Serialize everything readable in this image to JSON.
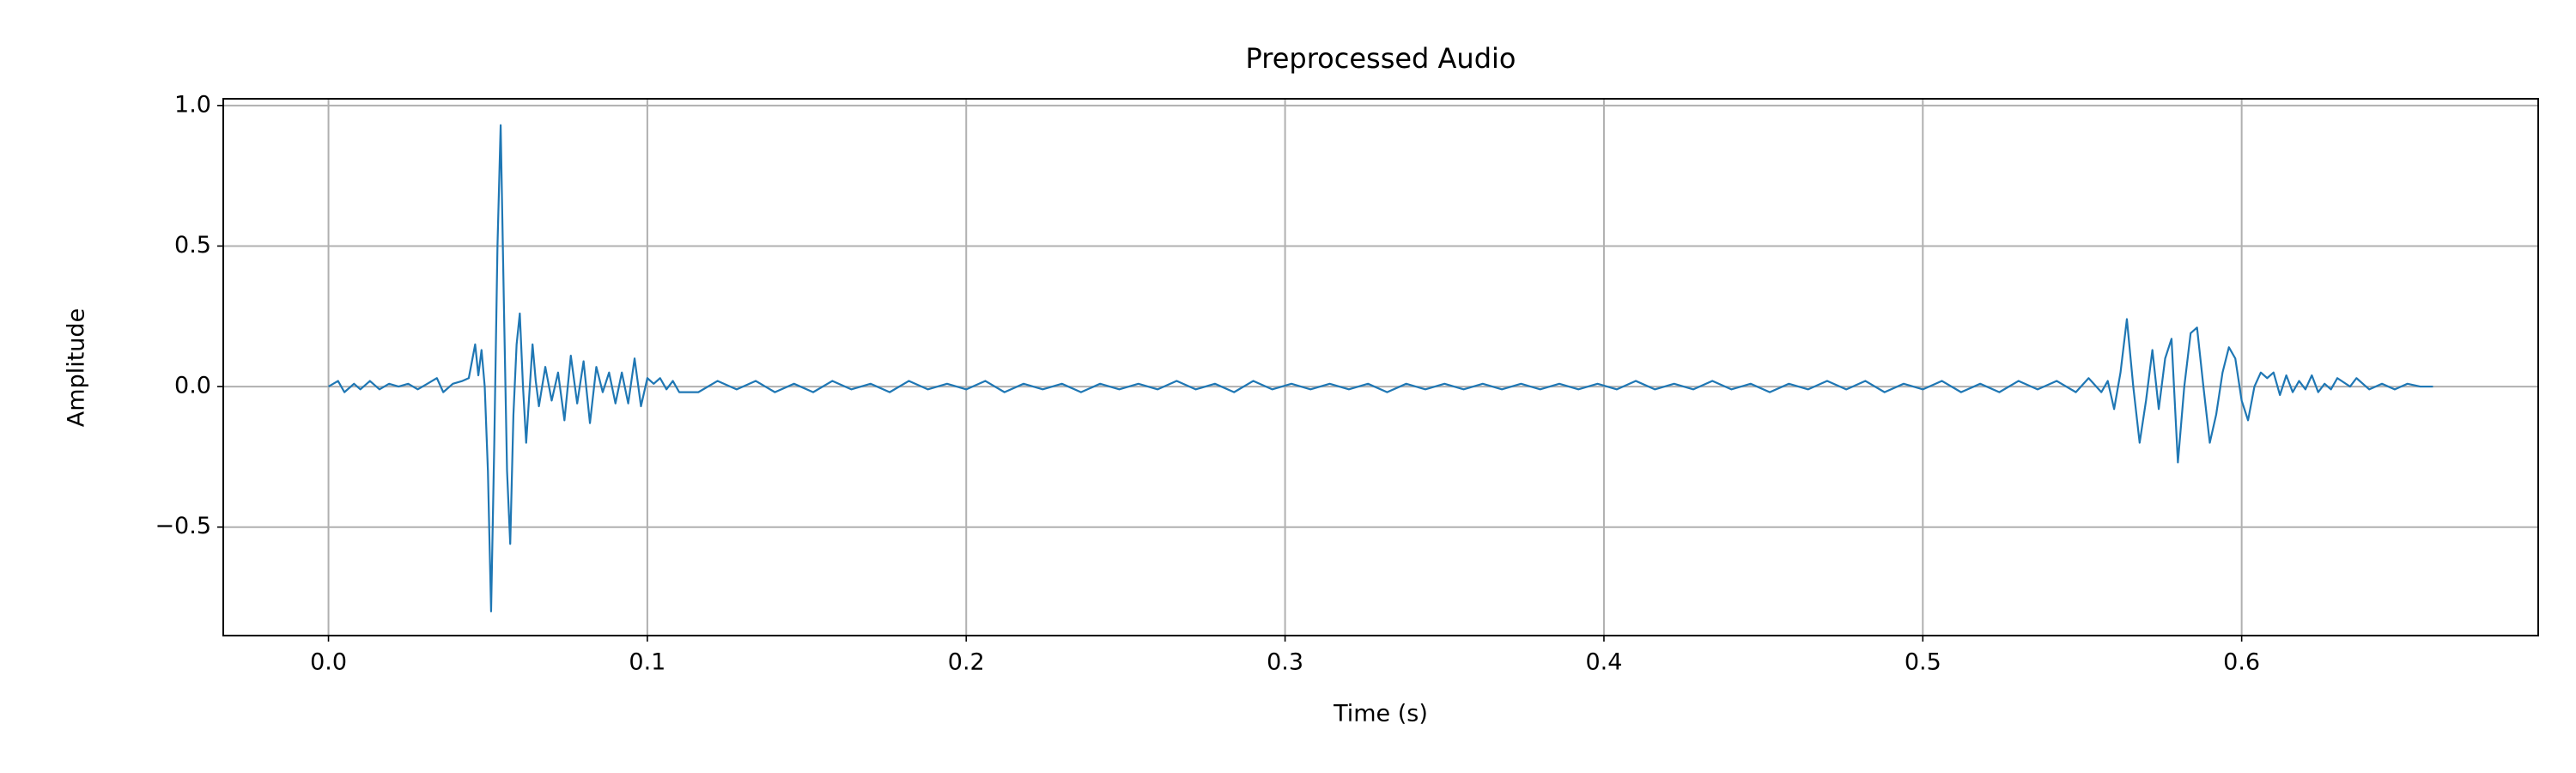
{
  "chart_data": {
    "type": "line",
    "title": "Preprocessed Audio",
    "x_label": "Time (s)",
    "y_label": "Amplitude",
    "color": "#1f77b4",
    "grid": true,
    "xlim": [
      -0.033,
      0.693
    ],
    "ylim": [
      -0.886,
      1.024
    ],
    "xticks": [
      {
        "value": 0,
        "label": "0.0"
      },
      0.1,
      0.2,
      0.3,
      0.4,
      0.5,
      0.6
    ],
    "yticks": [
      {
        "value": -0.5,
        "label": "−0.5"
      },
      {
        "value": 0,
        "label": "0.0"
      },
      0.5,
      {
        "value": 1,
        "label": "1.0"
      }
    ],
    "x": [
      0,
      0.003,
      0.005,
      0.008,
      0.01,
      0.013,
      0.016,
      0.019,
      0.022,
      0.025,
      0.028,
      0.031,
      0.034,
      0.036,
      0.039,
      0.042,
      0.044,
      0.046,
      0.047,
      0.048,
      0.049,
      0.05,
      0.051,
      0.052,
      0.053,
      0.054,
      0.055,
      0.056,
      0.057,
      0.058,
      0.059,
      0.06,
      0.061,
      0.062,
      0.064,
      0.065,
      0.066,
      0.068,
      0.07,
      0.072,
      0.074,
      0.076,
      0.078,
      0.08,
      0.082,
      0.084,
      0.086,
      0.088,
      0.09,
      0.092,
      0.094,
      0.096,
      0.098,
      0.1,
      0.102,
      0.104,
      0.106,
      0.108,
      0.11,
      0.116,
      0.122,
      0.128,
      0.134,
      0.14,
      0.146,
      0.152,
      0.158,
      0.164,
      0.17,
      0.176,
      0.182,
      0.188,
      0.194,
      0.2,
      0.206,
      0.212,
      0.218,
      0.224,
      0.23,
      0.236,
      0.242,
      0.248,
      0.254,
      0.26,
      0.266,
      0.272,
      0.278,
      0.284,
      0.29,
      0.296,
      0.302,
      0.308,
      0.314,
      0.32,
      0.326,
      0.332,
      0.338,
      0.344,
      0.35,
      0.356,
      0.362,
      0.368,
      0.374,
      0.38,
      0.386,
      0.392,
      0.398,
      0.404,
      0.41,
      0.416,
      0.422,
      0.428,
      0.434,
      0.44,
      0.446,
      0.452,
      0.458,
      0.464,
      0.47,
      0.476,
      0.482,
      0.488,
      0.494,
      0.5,
      0.506,
      0.512,
      0.518,
      0.524,
      0.53,
      0.536,
      0.542,
      0.548,
      0.552,
      0.556,
      0.558,
      0.56,
      0.562,
      0.564,
      0.566,
      0.568,
      0.57,
      0.572,
      0.574,
      0.576,
      0.578,
      0.58,
      0.582,
      0.584,
      0.586,
      0.588,
      0.59,
      0.592,
      0.594,
      0.596,
      0.598,
      0.6,
      0.602,
      0.604,
      0.606,
      0.608,
      0.61,
      0.612,
      0.614,
      0.616,
      0.618,
      0.62,
      0.622,
      0.624,
      0.626,
      0.628,
      0.63,
      0.634,
      0.636,
      0.64,
      0.644,
      0.648,
      0.652,
      0.656,
      0.66
    ],
    "values": [
      0,
      0.02,
      -0.02,
      0.01,
      -0.01,
      0.02,
      -0.01,
      0.01,
      0,
      0.01,
      -0.01,
      0.01,
      0.03,
      -0.02,
      0.01,
      0.02,
      0.03,
      0.15,
      0.04,
      0.13,
      0,
      -0.3,
      -0.8,
      -0.2,
      0.5,
      0.93,
      0.3,
      -0.3,
      -0.56,
      -0.1,
      0.15,
      0.26,
      0,
      -0.2,
      0.15,
      0.02,
      -0.07,
      0.07,
      -0.05,
      0.05,
      -0.12,
      0.11,
      -0.06,
      0.09,
      -0.13,
      0.07,
      -0.02,
      0.05,
      -0.06,
      0.05,
      -0.06,
      0.1,
      -0.07,
      0.03,
      0.01,
      0.03,
      -0.01,
      0.02,
      -0.02,
      -0.02,
      0.02,
      -0.01,
      0.02,
      -0.02,
      0.01,
      -0.02,
      0.02,
      -0.01,
      0.01,
      -0.02,
      0.02,
      -0.01,
      0.01,
      -0.01,
      0.02,
      -0.02,
      0.01,
      -0.01,
      0.01,
      -0.02,
      0.01,
      -0.01,
      0.01,
      -0.01,
      0.02,
      -0.01,
      0.01,
      -0.02,
      0.02,
      -0.01,
      0.01,
      -0.01,
      0.01,
      -0.01,
      0.01,
      -0.02,
      0.01,
      -0.01,
      0.01,
      -0.01,
      0.01,
      -0.01,
      0.01,
      -0.01,
      0.01,
      -0.01,
      0.01,
      -0.01,
      0.02,
      -0.01,
      0.01,
      -0.01,
      0.02,
      -0.01,
      0.01,
      -0.02,
      0.01,
      -0.01,
      0.02,
      -0.01,
      0.02,
      -0.02,
      0.01,
      -0.01,
      0.02,
      -0.02,
      0.01,
      -0.02,
      0.02,
      -0.01,
      0.02,
      -0.02,
      0.03,
      -0.02,
      0.02,
      -0.08,
      0.05,
      0.24,
      0,
      -0.2,
      -0.05,
      0.13,
      -0.08,
      0.1,
      0.17,
      -0.27,
      0,
      0.19,
      0.21,
      0,
      -0.2,
      -0.1,
      0.05,
      0.14,
      0.1,
      -0.05,
      -0.12,
      0,
      0.05,
      0.03,
      0.05,
      -0.03,
      0.04,
      -0.02,
      0.02,
      -0.01,
      0.04,
      -0.02,
      0.01,
      -0.01,
      0.03,
      0,
      0.03,
      -0.01,
      0.01,
      -0.01,
      0.01,
      0,
      0
    ]
  }
}
